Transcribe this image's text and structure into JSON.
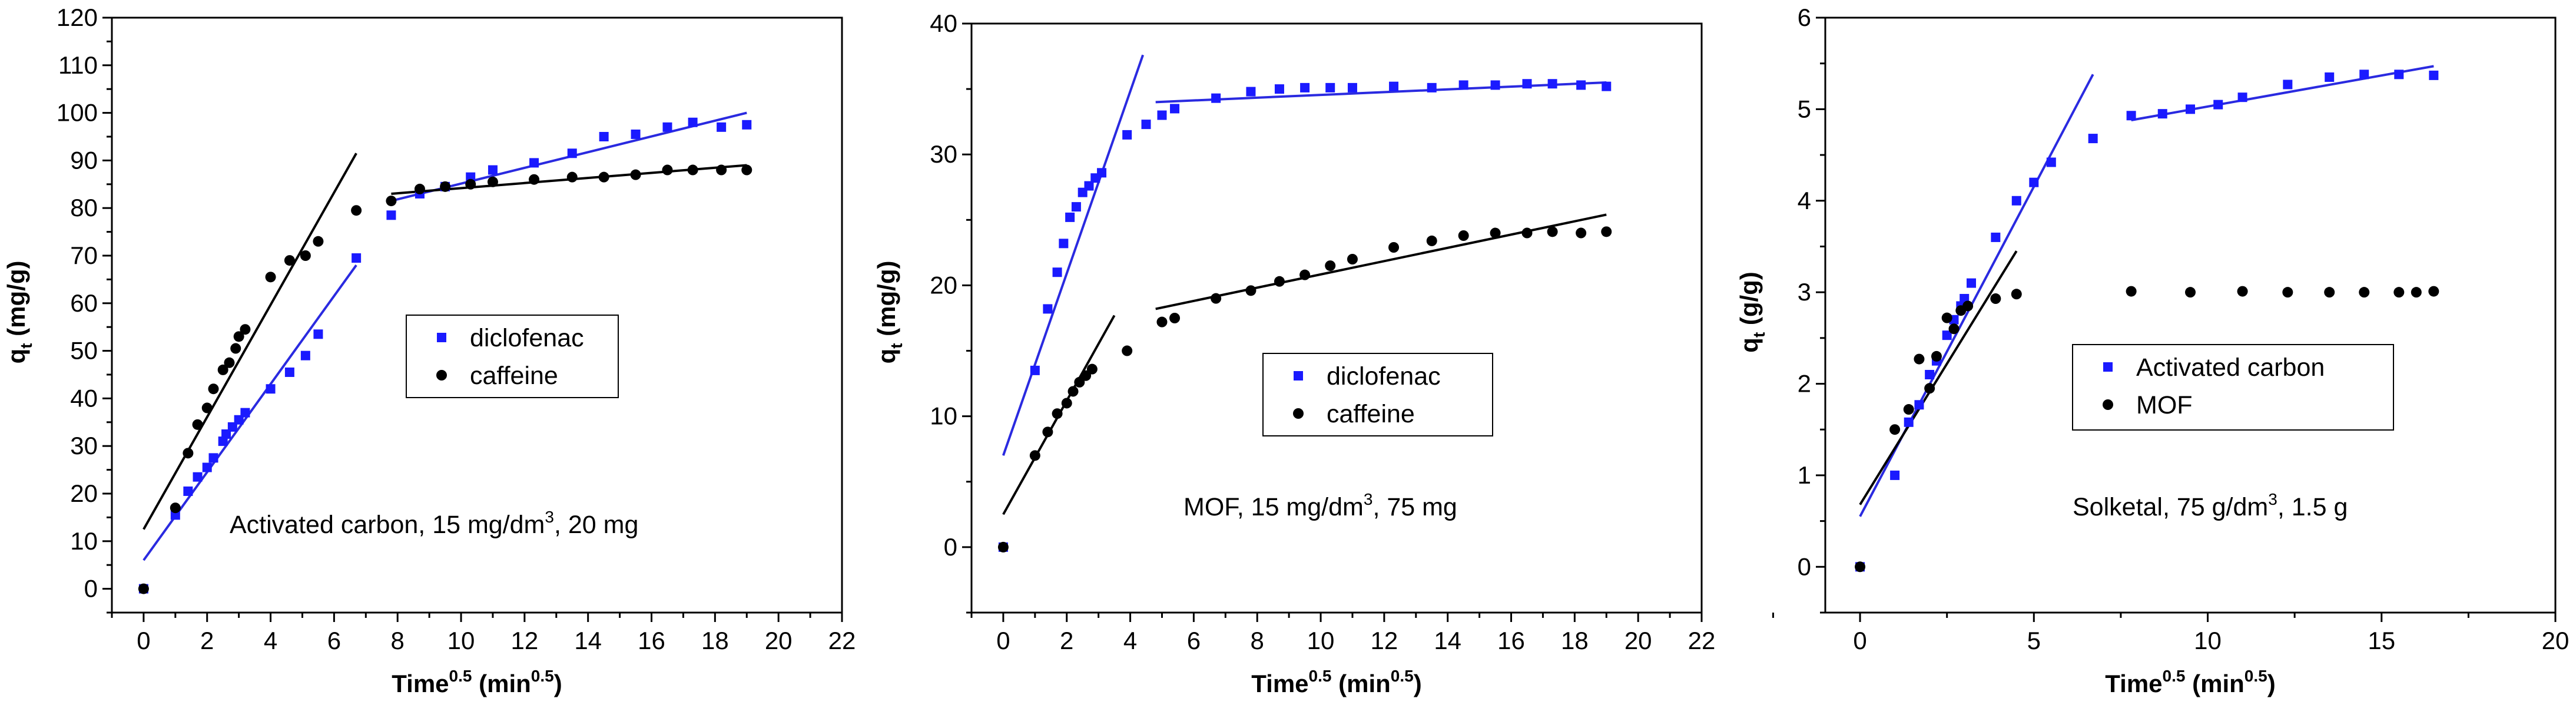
{
  "colors": {
    "blue": "#1a1aff",
    "black": "#000000",
    "blue_line": "#2a2ae0"
  },
  "chart_data": [
    {
      "type": "scatter",
      "title": "",
      "annotation": {
        "pre": "Activated carbon, 15 mg/dm",
        "sup": "3",
        "post": ", 20 mg"
      },
      "ylabel": {
        "main": "q",
        "sub": "t",
        "post": " (mg/g)"
      },
      "xlabel": {
        "main": "Time",
        "sup": "0.5",
        "mid": " (min",
        "sup2": "0.5",
        "post": ")"
      },
      "xlim": [
        -1,
        22
      ],
      "ylim": [
        -5,
        120
      ],
      "xticks": [
        0,
        2,
        4,
        6,
        8,
        10,
        12,
        14,
        16,
        18,
        20,
        22
      ],
      "yticks": [
        0,
        10,
        20,
        30,
        40,
        50,
        60,
        70,
        80,
        90,
        100,
        110,
        120
      ],
      "legend": [
        {
          "label": "diclofenac",
          "marker": "square",
          "color": "#1a1aff"
        },
        {
          "label": "caffeine",
          "marker": "circle",
          "color": "#000000"
        }
      ],
      "series": [
        {
          "name": "diclofenac",
          "marker": "square",
          "color": "#1a1aff",
          "points": [
            [
              0,
              0
            ],
            [
              1,
              15.5
            ],
            [
              1.4,
              20.5
            ],
            [
              1.7,
              23.5
            ],
            [
              2,
              25.5
            ],
            [
              2.2,
              27.5
            ],
            [
              2.5,
              31
            ],
            [
              2.6,
              32.5
            ],
            [
              2.8,
              34
            ],
            [
              3,
              35.5
            ],
            [
              3.2,
              37
            ],
            [
              4,
              42
            ],
            [
              4.6,
              45.5
            ],
            [
              5.1,
              49
            ],
            [
              5.5,
              53.5
            ],
            [
              6.7,
              69.5
            ],
            [
              7.8,
              78.5
            ],
            [
              8.7,
              83
            ],
            [
              9.5,
              84.5
            ],
            [
              10.3,
              86.5
            ],
            [
              11,
              88
            ],
            [
              12.3,
              89.5
            ],
            [
              13.5,
              91.5
            ],
            [
              14.5,
              95
            ],
            [
              15.5,
              95.5
            ],
            [
              16.5,
              97
            ],
            [
              17.3,
              98
            ],
            [
              18.2,
              97
            ],
            [
              19,
              97.5
            ]
          ]
        },
        {
          "name": "caffeine",
          "marker": "circle",
          "color": "#000000",
          "points": [
            [
              0,
              0
            ],
            [
              1,
              17
            ],
            [
              1.4,
              28.5
            ],
            [
              1.7,
              34.5
            ],
            [
              2,
              38
            ],
            [
              2.2,
              42
            ],
            [
              2.5,
              46
            ],
            [
              2.7,
              47.5
            ],
            [
              2.9,
              50.5
            ],
            [
              3,
              53
            ],
            [
              3.2,
              54.5
            ],
            [
              4,
              65.5
            ],
            [
              4.6,
              69
            ],
            [
              5.1,
              70
            ],
            [
              5.5,
              73
            ],
            [
              6.7,
              79.5
            ],
            [
              7.8,
              81.5
            ],
            [
              8.7,
              84
            ],
            [
              9.5,
              84.5
            ],
            [
              10.3,
              85
            ],
            [
              11,
              85.5
            ],
            [
              12.3,
              86
            ],
            [
              13.5,
              86.5
            ],
            [
              14.5,
              86.5
            ],
            [
              15.5,
              87
            ],
            [
              16.5,
              88
            ],
            [
              17.3,
              88
            ],
            [
              18.2,
              88
            ],
            [
              19,
              88
            ]
          ]
        }
      ],
      "fits": [
        {
          "color": "#2a2ae0",
          "x": [
            0,
            6.7
          ],
          "y": [
            6,
            68
          ]
        },
        {
          "color": "#000000",
          "x": [
            0,
            6.7
          ],
          "y": [
            12.5,
            91.5
          ]
        },
        {
          "color": "#2a2ae0",
          "x": [
            7.8,
            19
          ],
          "y": [
            81.5,
            100
          ]
        },
        {
          "color": "#000000",
          "x": [
            7.8,
            19
          ],
          "y": [
            83,
            89
          ]
        }
      ]
    },
    {
      "type": "scatter",
      "title": "",
      "annotation": {
        "pre": "MOF, 15 mg/dm",
        "sup": "3",
        "post": ", 75 mg"
      },
      "ylabel": {
        "main": "q",
        "sub": "t",
        "post": " (mg/g)"
      },
      "xlabel": {
        "main": "Time",
        "sup": "0.5",
        "mid": " (min",
        "sup2": "0.5",
        "post": ")"
      },
      "xlim": [
        -1,
        22
      ],
      "ylim": [
        -5,
        40
      ],
      "xticks": [
        0,
        2,
        4,
        6,
        8,
        10,
        12,
        14,
        16,
        18,
        20,
        22
      ],
      "yticks": [
        0,
        10,
        20,
        30,
        40
      ],
      "legend": [
        {
          "label": "diclofenac",
          "marker": "square",
          "color": "#1a1aff"
        },
        {
          "label": "caffeine",
          "marker": "circle",
          "color": "#000000"
        }
      ],
      "series": [
        {
          "name": "diclofenac",
          "marker": "square",
          "color": "#1a1aff",
          "points": [
            [
              0,
              0
            ],
            [
              1,
              13.5
            ],
            [
              1.4,
              18.2
            ],
            [
              1.7,
              21
            ],
            [
              1.9,
              23.2
            ],
            [
              2.1,
              25.2
            ],
            [
              2.3,
              26
            ],
            [
              2.5,
              27.1
            ],
            [
              2.7,
              27.6
            ],
            [
              2.9,
              28.2
            ],
            [
              3.1,
              28.6
            ],
            [
              3.9,
              31.5
            ],
            [
              4.5,
              32.3
            ],
            [
              5,
              33
            ],
            [
              5.4,
              33.5
            ],
            [
              6.7,
              34.3
            ],
            [
              7.8,
              34.8
            ],
            [
              8.7,
              35
            ],
            [
              9.5,
              35.1
            ],
            [
              10.3,
              35.1
            ],
            [
              11,
              35.1
            ],
            [
              12.3,
              35.2
            ],
            [
              13.5,
              35.1
            ],
            [
              14.5,
              35.3
            ],
            [
              15.5,
              35.3
            ],
            [
              16.5,
              35.4
            ],
            [
              17.3,
              35.4
            ],
            [
              18.2,
              35.3
            ],
            [
              19,
              35.2
            ]
          ]
        },
        {
          "name": "caffeine",
          "marker": "circle",
          "color": "#000000",
          "points": [
            [
              0,
              0
            ],
            [
              1,
              7
            ],
            [
              1.4,
              8.8
            ],
            [
              1.7,
              10.2
            ],
            [
              2,
              11
            ],
            [
              2.2,
              11.9
            ],
            [
              2.4,
              12.6
            ],
            [
              2.6,
              13.1
            ],
            [
              2.8,
              13.6
            ],
            [
              3.9,
              15
            ],
            [
              5,
              17.2
            ],
            [
              5.4,
              17.5
            ],
            [
              6.7,
              19
            ],
            [
              7.8,
              19.6
            ],
            [
              8.7,
              20.3
            ],
            [
              9.5,
              20.8
            ],
            [
              10.3,
              21.5
            ],
            [
              11,
              22
            ],
            [
              12.3,
              22.9
            ],
            [
              13.5,
              23.4
            ],
            [
              14.5,
              23.8
            ],
            [
              15.5,
              24
            ],
            [
              16.5,
              24
            ],
            [
              17.3,
              24.1
            ],
            [
              18.2,
              24
            ],
            [
              19,
              24.1
            ]
          ]
        }
      ],
      "fits": [
        {
          "color": "#2a2ae0",
          "x": [
            0,
            4.4
          ],
          "y": [
            7,
            37.6
          ]
        },
        {
          "color": "#000000",
          "x": [
            0,
            3.5
          ],
          "y": [
            2.5,
            17.7
          ]
        },
        {
          "color": "#2a2ae0",
          "x": [
            4.8,
            19
          ],
          "y": [
            34,
            35.5
          ]
        },
        {
          "color": "#000000",
          "x": [
            4.8,
            19
          ],
          "y": [
            18.2,
            25.4
          ]
        }
      ]
    },
    {
      "type": "scatter",
      "title": "",
      "annotation": {
        "pre": "Solketal, 75 g/dm",
        "sup": "3",
        "post": ", 1.5 g"
      },
      "ylabel": {
        "main": "q",
        "sub": "t",
        "post": " (g/g)"
      },
      "xlabel": {
        "main": "Time",
        "sup": "0.5",
        "mid": " (min",
        "sup2": "0.5",
        "post": ")"
      },
      "xlim": [
        -1,
        20
      ],
      "ylim": [
        -0.5,
        6
      ],
      "xticks": [
        0,
        5,
        10,
        15,
        20
      ],
      "yticks": [
        0,
        1,
        2,
        3,
        4,
        5,
        6
      ],
      "legend": [
        {
          "label": "Activated carbon",
          "marker": "square",
          "color": "#1a1aff"
        },
        {
          "label": "MOF",
          "marker": "circle",
          "color": "#000000"
        }
      ],
      "series": [
        {
          "name": "Activated carbon",
          "marker": "square",
          "color": "#1a1aff",
          "points": [
            [
              0,
              0
            ],
            [
              1,
              1
            ],
            [
              1.4,
              1.58
            ],
            [
              1.7,
              1.77
            ],
            [
              2,
              2.1
            ],
            [
              2.2,
              2.25
            ],
            [
              2.5,
              2.53
            ],
            [
              2.7,
              2.7
            ],
            [
              2.9,
              2.85
            ],
            [
              3,
              2.93
            ],
            [
              3.2,
              3.1
            ],
            [
              3.9,
              3.6
            ],
            [
              4.5,
              4
            ],
            [
              5,
              4.2
            ],
            [
              5.5,
              4.42
            ],
            [
              6.7,
              4.68
            ],
            [
              7.8,
              4.93
            ],
            [
              8.7,
              4.95
            ],
            [
              9.5,
              5
            ],
            [
              10.3,
              5.05
            ],
            [
              11,
              5.13
            ],
            [
              12.3,
              5.27
            ],
            [
              13.5,
              5.35
            ],
            [
              14.5,
              5.38
            ],
            [
              15.5,
              5.38
            ],
            [
              16.5,
              5.37
            ]
          ]
        },
        {
          "name": "MOF",
          "marker": "circle",
          "color": "#000000",
          "points": [
            [
              0,
              0
            ],
            [
              1,
              1.5
            ],
            [
              1.4,
              1.72
            ],
            [
              1.7,
              2.27
            ],
            [
              2,
              1.95
            ],
            [
              2.2,
              2.3
            ],
            [
              2.5,
              2.72
            ],
            [
              2.7,
              2.6
            ],
            [
              2.9,
              2.8
            ],
            [
              3.1,
              2.85
            ],
            [
              3.9,
              2.93
            ],
            [
              4.5,
              2.98
            ],
            [
              7.8,
              3.01
            ],
            [
              9.5,
              3
            ],
            [
              11,
              3.01
            ],
            [
              12.3,
              3
            ],
            [
              13.5,
              3
            ],
            [
              14.5,
              3
            ],
            [
              15.5,
              3
            ],
            [
              16,
              3
            ],
            [
              16.5,
              3.01
            ]
          ]
        }
      ],
      "fits": [
        {
          "color": "#2a2ae0",
          "x": [
            0,
            6.7
          ],
          "y": [
            0.55,
            5.38
          ]
        },
        {
          "color": "#000000",
          "x": [
            0,
            4.5
          ],
          "y": [
            0.68,
            3.45
          ]
        },
        {
          "color": "#2a2ae0",
          "x": [
            7.8,
            16.5
          ],
          "y": [
            4.88,
            5.47
          ]
        }
      ]
    }
  ]
}
